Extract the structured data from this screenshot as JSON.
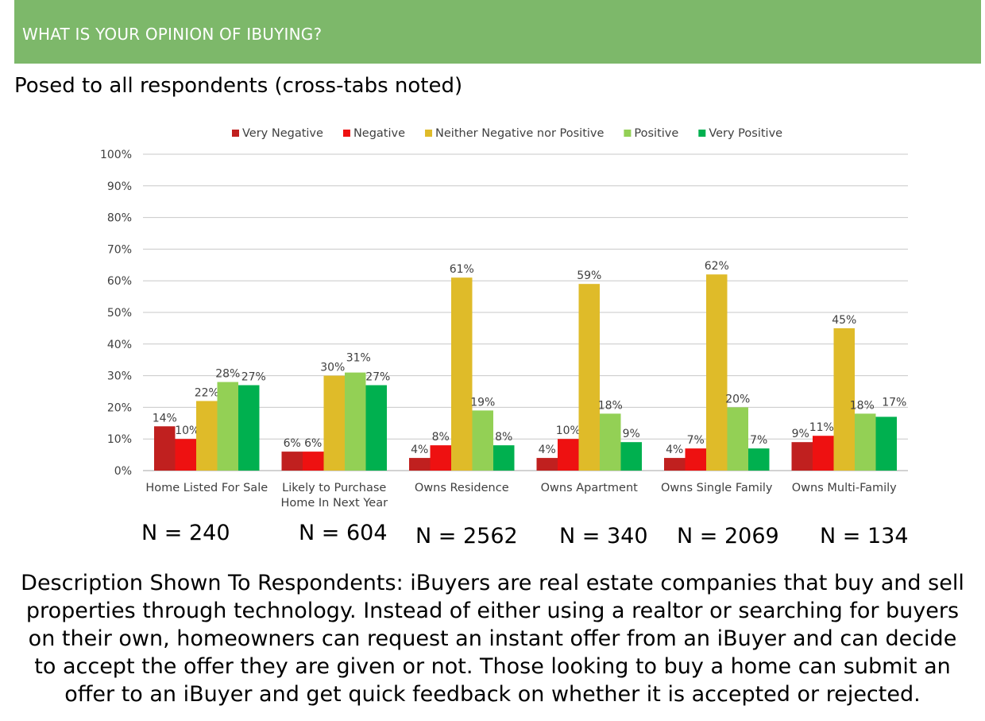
{
  "header": {
    "title": "WHAT IS YOUR OPINION OF IBUYING?"
  },
  "subtitle": "Posed to all respondents (cross-tabs noted)",
  "colors": {
    "header_bg": "#7db86a",
    "very_negative": "#c0201f",
    "negative": "#ee1111",
    "neither": "#dfbb29",
    "positive": "#93d055",
    "very_positive": "#00b04f",
    "gridline": "#c8c8c8"
  },
  "chart_data": {
    "type": "bar",
    "categories": [
      [
        "Home Listed For Sale"
      ],
      [
        "Likely to Purchase",
        "Home In Next Year"
      ],
      [
        "Owns Residence"
      ],
      [
        "Owns Apartment"
      ],
      [
        "Owns Single Family"
      ],
      [
        "Owns Multi-Family"
      ]
    ],
    "series": [
      {
        "name": "Very Negative",
        "color": "#c0201f",
        "values": [
          14,
          6,
          4,
          4,
          4,
          9
        ]
      },
      {
        "name": "Negative",
        "color": "#ee1111",
        "values": [
          10,
          6,
          8,
          10,
          7,
          11
        ]
      },
      {
        "name": "Neither Negative nor Positive",
        "color": "#dfbb29",
        "values": [
          22,
          30,
          61,
          59,
          62,
          45
        ]
      },
      {
        "name": "Positive",
        "color": "#93d055",
        "values": [
          28,
          31,
          19,
          18,
          20,
          18
        ]
      },
      {
        "name": "Very Positive",
        "color": "#00b04f",
        "values": [
          27,
          27,
          8,
          9,
          7,
          17
        ]
      }
    ],
    "ylim": [
      0,
      100
    ],
    "yticks": [
      "0%",
      "10%",
      "20%",
      "30%",
      "40%",
      "50%",
      "60%",
      "70%",
      "80%",
      "90%",
      "100%"
    ],
    "value_suffix": "%",
    "grid": true,
    "legend_position": "top-center"
  },
  "sample_sizes": [
    "N = 240",
    "N = 604",
    "N = 2562",
    "N = 340",
    "N = 2069",
    "N = 134"
  ],
  "description": "Description Shown To Respondents: iBuyers are real estate companies that buy and sell properties through technology. Instead of either using a realtor or searching for buyers on their own, homeowners can request an instant offer from an iBuyer and can decide to accept the offer they are given or not. Those looking to buy a home can submit an offer to an iBuyer and get quick feedback on whether it is accepted or rejected."
}
